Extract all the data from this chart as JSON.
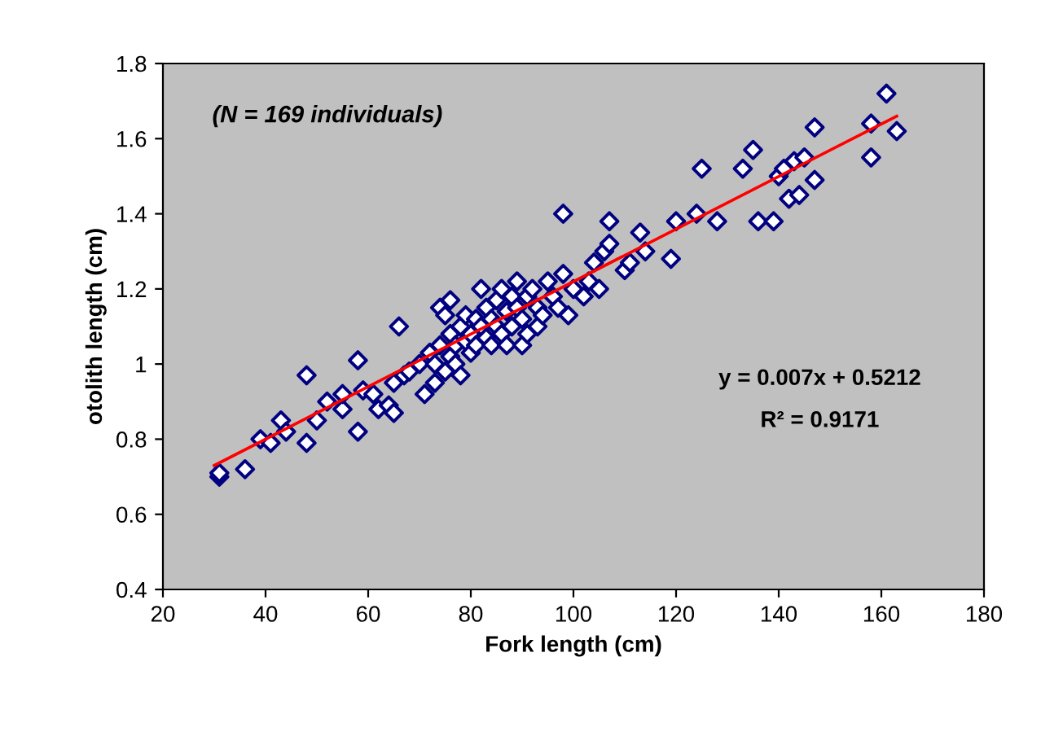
{
  "chart_data": {
    "type": "scatter",
    "xlabel": "Fork length (cm)",
    "ylabel": "otolith length (cm)",
    "xlim": [
      20,
      180
    ],
    "xticks": [
      20,
      40,
      60,
      80,
      100,
      120,
      140,
      160,
      180
    ],
    "ylim": [
      0.4,
      1.8
    ],
    "yticks": [
      0.4,
      0.6,
      0.8,
      1,
      1.2,
      1.4,
      1.6,
      1.8
    ],
    "grid": false,
    "annotations": [
      "(N = 169 individuals)",
      "y = 0.007x + 0.5212",
      "R² = 0.9171"
    ],
    "series": [
      {
        "marker": "diamond",
        "color": "#000080",
        "x": [
          31,
          31,
          36,
          39,
          41,
          43,
          44,
          48,
          48,
          50,
          52,
          55,
          55,
          58,
          58,
          59,
          61,
          62,
          64,
          65,
          65,
          66,
          67,
          68,
          70,
          71,
          72,
          73,
          73,
          74,
          74,
          75,
          75,
          76,
          76,
          76,
          77,
          77,
          78,
          78,
          79,
          79,
          80,
          80,
          81,
          81,
          82,
          82,
          83,
          83,
          84,
          84,
          85,
          85,
          86,
          86,
          87,
          87,
          88,
          88,
          89,
          89,
          90,
          90,
          91,
          91,
          92,
          93,
          93,
          94,
          95,
          96,
          97,
          98,
          98,
          99,
          100,
          102,
          103,
          104,
          105,
          106,
          107,
          107,
          110,
          111,
          113,
          114,
          119,
          120,
          124,
          125,
          128,
          133,
          135,
          136,
          139,
          140,
          141,
          142,
          143,
          144,
          145,
          147,
          147,
          158,
          158,
          161,
          163
        ],
        "values": [
          0.7,
          0.71,
          0.72,
          0.8,
          0.79,
          0.85,
          0.82,
          0.97,
          0.79,
          0.85,
          0.9,
          0.88,
          0.92,
          0.82,
          1.01,
          0.93,
          0.92,
          0.88,
          0.89,
          0.87,
          0.95,
          1.1,
          0.97,
          0.98,
          1.0,
          0.92,
          1.03,
          0.95,
          1.0,
          1.05,
          1.15,
          0.98,
          1.13,
          1.02,
          1.08,
          1.17,
          1.05,
          1.0,
          1.1,
          0.97,
          1.06,
          1.13,
          1.03,
          1.08,
          1.12,
          1.05,
          1.1,
          1.2,
          1.15,
          1.07,
          1.12,
          1.05,
          1.17,
          1.1,
          1.2,
          1.08,
          1.14,
          1.05,
          1.18,
          1.1,
          1.22,
          1.15,
          1.12,
          1.05,
          1.08,
          1.18,
          1.2,
          1.1,
          1.15,
          1.13,
          1.22,
          1.18,
          1.15,
          1.4,
          1.24,
          1.13,
          1.2,
          1.18,
          1.22,
          1.27,
          1.2,
          1.3,
          1.38,
          1.32,
          1.25,
          1.27,
          1.35,
          1.3,
          1.28,
          1.38,
          1.4,
          1.52,
          1.38,
          1.52,
          1.57,
          1.38,
          1.38,
          1.5,
          1.52,
          1.44,
          1.54,
          1.45,
          1.55,
          1.49,
          1.63,
          1.64,
          1.55,
          1.72,
          1.62
        ]
      },
      {
        "type": "line",
        "color": "#ff0000",
        "x": [
          30,
          163
        ],
        "values": [
          0.73,
          1.66
        ]
      }
    ]
  }
}
